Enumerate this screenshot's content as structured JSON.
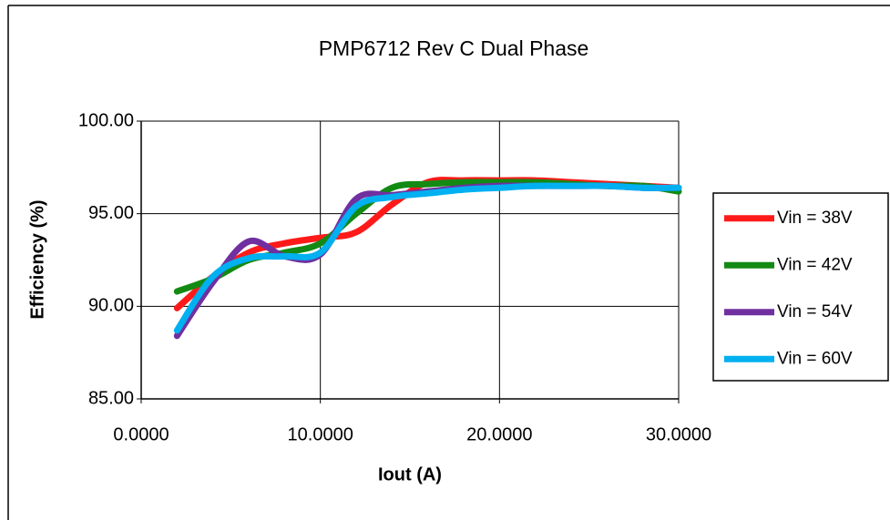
{
  "chart_data": {
    "type": "line",
    "title": "PMP6712  Rev C  Dual Phase",
    "xlabel": "Iout (A)",
    "ylabel": "Efficiency (%)",
    "x": [
      2,
      4,
      6,
      8,
      10,
      12,
      14,
      16,
      18,
      20,
      22,
      24,
      26,
      28,
      30
    ],
    "series": [
      {
        "name": "Vin = 38V",
        "color": "#ff1a1a",
        "values": [
          89.9,
          91.6,
          92.9,
          93.4,
          93.7,
          94.0,
          95.5,
          96.7,
          96.8,
          96.8,
          96.8,
          96.7,
          96.6,
          96.5,
          96.4
        ]
      },
      {
        "name": "Vin = 42V",
        "color": "#138a13",
        "values": [
          90.8,
          91.5,
          92.5,
          92.9,
          93.4,
          95.0,
          96.4,
          96.6,
          96.7,
          96.7,
          96.7,
          96.6,
          96.5,
          96.5,
          96.2
        ]
      },
      {
        "name": "Vin = 54V",
        "color": "#7030a0",
        "values": [
          88.4,
          91.3,
          93.5,
          92.7,
          92.8,
          95.8,
          96.0,
          96.2,
          96.4,
          96.5,
          96.5,
          96.5,
          96.5,
          96.4,
          96.4
        ]
      },
      {
        "name": "Vin = 60V",
        "color": "#00b0f0",
        "values": [
          88.7,
          91.6,
          92.6,
          92.7,
          92.9,
          95.4,
          95.9,
          96.1,
          96.3,
          96.4,
          96.5,
          96.5,
          96.5,
          96.4,
          96.4
        ]
      }
    ],
    "xlim": [
      0,
      30
    ],
    "xticks": [
      {
        "value": 0,
        "label": "0.0000"
      },
      {
        "value": 10,
        "label": "10.0000"
      },
      {
        "value": 20,
        "label": "20.0000"
      },
      {
        "value": 30,
        "label": "30.0000"
      }
    ],
    "ylim": [
      85,
      100
    ],
    "yticks": [
      {
        "value": 85,
        "label": "85.00"
      },
      {
        "value": 90,
        "label": "90.00"
      },
      {
        "value": 95,
        "label": "95.00"
      },
      {
        "value": 100,
        "label": "100.00"
      }
    ],
    "grid": true,
    "legend": "right"
  }
}
